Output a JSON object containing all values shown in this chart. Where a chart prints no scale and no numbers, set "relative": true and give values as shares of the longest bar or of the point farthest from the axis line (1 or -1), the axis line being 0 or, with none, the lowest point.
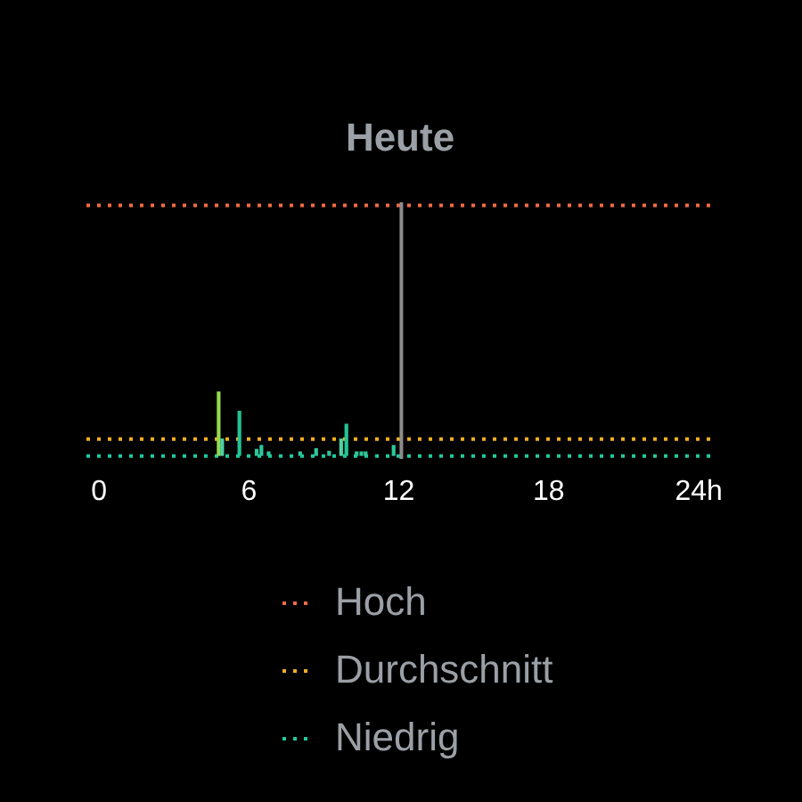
{
  "chart_data": {
    "type": "bar",
    "title": "Heute",
    "relative": true,
    "x": [
      4.79,
      4.93,
      5.62,
      6.31,
      6.5,
      6.79,
      8.05,
      8.69,
      9.21,
      9.69,
      9.9,
      10.31,
      10.5,
      10.67,
      11.79
    ],
    "values": [
      1,
      0.27,
      0.7,
      0.11,
      0.17,
      0.07,
      0.07,
      0.12,
      0.08,
      0.27,
      0.5,
      0.07,
      0.07,
      0.07,
      0.17
    ],
    "colors": [
      "#93d94e",
      "#4fd1a5",
      "#22c495",
      "#2fc59a",
      "#2fc59a",
      "#2fc59a",
      "#2fc59a",
      "#2fc59a",
      "#2fc59a",
      "#4fd1a5",
      "#22c495",
      "#2fc59a",
      "#2fc59a",
      "#2fc59a",
      "#2fc59a"
    ],
    "xlim": [
      -0.5,
      24.6
    ],
    "xticks": [
      0,
      6,
      12,
      18,
      {
        "value": 24,
        "label": "24h"
      }
    ],
    "tick_labels": "x",
    "ref_lines": [
      {
        "axis": "y",
        "value": 3.89,
        "label": "Hoch",
        "color": "#f26b43",
        "line_style": "dotted"
      },
      {
        "axis": "y",
        "value": 0.26,
        "label": "Durchschnitt",
        "color": "#f2b01e",
        "line_style": "dotted"
      },
      {
        "axis": "y",
        "value": 0,
        "label": "Niedrig",
        "color": "#1fc9a0",
        "line_style": "dotted"
      },
      {
        "axis": "x",
        "value": 12.1,
        "color": "#8c8c8c",
        "line_style": "solid"
      }
    ],
    "legend": "bottom",
    "grid": false
  }
}
